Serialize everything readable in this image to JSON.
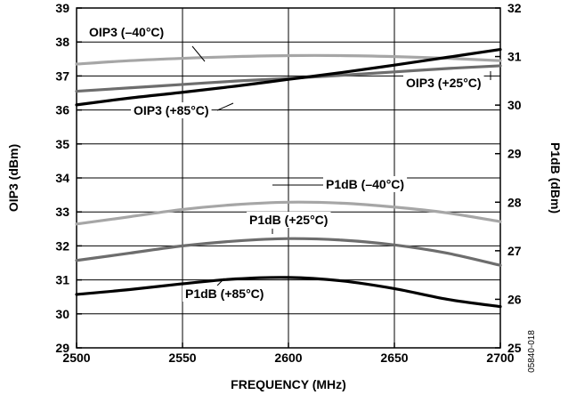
{
  "chart_data": {
    "type": "line",
    "xlabel": "FREQUENCY (MHz)",
    "ylabel_left": "OIP3 (dBm)",
    "ylabel_right": "P1dB (dBm)",
    "xlim": [
      2500,
      2700
    ],
    "ylim_left": [
      29,
      39
    ],
    "ylim_right": [
      25,
      32
    ],
    "x_ticks": [
      2500,
      2550,
      2600,
      2650,
      2700
    ],
    "y_ticks_left": [
      29,
      30,
      31,
      32,
      33,
      34,
      35,
      36,
      37,
      38,
      39
    ],
    "y_ticks_right": [
      25,
      26,
      27,
      28,
      29,
      30,
      31,
      32
    ],
    "grid": true,
    "figure_code": "05840-018",
    "colors": {
      "black": "#000000",
      "dark_gray": "#6d6d6d",
      "light_gray": "#a6a6a6"
    },
    "series": [
      {
        "name": "OIP3 (–40°C)",
        "axis": "left",
        "color": "#a6a6a6",
        "x": [
          2500,
          2525,
          2550,
          2575,
          2600,
          2625,
          2650,
          2675,
          2700
        ],
        "y": [
          37.35,
          37.45,
          37.52,
          37.57,
          37.6,
          37.6,
          37.57,
          37.52,
          37.45
        ]
      },
      {
        "name": "OIP3 (+25°C)",
        "axis": "left",
        "color": "#6d6d6d",
        "x": [
          2500,
          2525,
          2550,
          2575,
          2600,
          2625,
          2650,
          2675,
          2700
        ],
        "y": [
          36.55,
          36.65,
          36.75,
          36.85,
          36.93,
          37.02,
          37.12,
          37.22,
          37.3
        ]
      },
      {
        "name": "OIP3 (+85°C)",
        "axis": "left",
        "color": "#000000",
        "x": [
          2500,
          2525,
          2550,
          2575,
          2600,
          2625,
          2650,
          2675,
          2700
        ],
        "y": [
          36.15,
          36.35,
          36.52,
          36.7,
          36.9,
          37.1,
          37.32,
          37.55,
          37.78
        ]
      },
      {
        "name": "P1dB (–40°C)",
        "axis": "right",
        "color": "#a6a6a6",
        "x": [
          2500,
          2525,
          2550,
          2575,
          2600,
          2625,
          2650,
          2675,
          2700
        ],
        "y": [
          27.55,
          27.7,
          27.85,
          27.95,
          28.0,
          27.98,
          27.9,
          27.78,
          27.6
        ]
      },
      {
        "name": "P1dB (+25°C)",
        "axis": "right",
        "color": "#6d6d6d",
        "x": [
          2500,
          2525,
          2550,
          2575,
          2600,
          2625,
          2650,
          2675,
          2700
        ],
        "y": [
          26.8,
          26.95,
          27.1,
          27.2,
          27.25,
          27.22,
          27.12,
          26.95,
          26.7
        ]
      },
      {
        "name": "P1dB (+85°C)",
        "axis": "right",
        "color": "#000000",
        "x": [
          2500,
          2525,
          2550,
          2575,
          2600,
          2625,
          2650,
          2675,
          2700
        ],
        "y": [
          26.1,
          26.2,
          26.32,
          26.42,
          26.45,
          26.38,
          26.22,
          26.0,
          25.85
        ]
      }
    ],
    "annotations": [
      {
        "label": "OIP3 (–40°C)",
        "series": 0
      },
      {
        "label": "OIP3 (+25°C)",
        "series": 1
      },
      {
        "label": "OIP3 (+85°C)",
        "series": 2
      },
      {
        "label": "P1dB (–40°C)",
        "series": 3
      },
      {
        "label": "P1dB (+25°C)",
        "series": 4
      },
      {
        "label": "P1dB (+85°C)",
        "series": 5
      }
    ]
  }
}
